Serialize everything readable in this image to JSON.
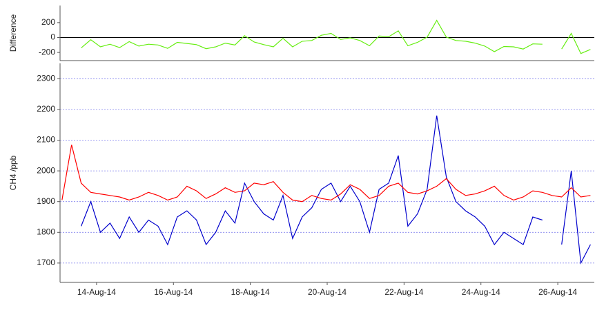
{
  "chart_data": [
    {
      "type": "line",
      "ylabel": "Difference",
      "x": [
        13.1,
        13.35,
        13.6,
        13.85,
        14.1,
        14.35,
        14.6,
        14.85,
        15.1,
        15.35,
        15.6,
        15.85,
        16.1,
        16.35,
        16.6,
        16.85,
        17.1,
        17.35,
        17.6,
        17.85,
        18.1,
        18.35,
        18.6,
        18.85,
        19.1,
        19.35,
        19.6,
        19.85,
        20.1,
        20.35,
        20.6,
        20.85,
        21.1,
        21.35,
        21.6,
        21.85,
        22.1,
        22.35,
        22.6,
        22.85,
        23.1,
        23.35,
        23.6,
        23.85,
        24.1,
        24.35,
        24.6,
        24.85,
        25.1,
        25.35,
        25.6,
        25.85,
        26.1,
        26.35,
        26.6,
        26.85
      ],
      "series": [
        {
          "color": "#66ee11",
          "values": [
            null,
            null,
            -140,
            -30,
            -125,
            -90,
            -135,
            -55,
            -115,
            -90,
            -100,
            -145,
            -65,
            -80,
            -95,
            -150,
            -125,
            -75,
            -100,
            25,
            -60,
            -95,
            -125,
            -10,
            -125,
            -50,
            -40,
            30,
            55,
            -25,
            -5,
            -40,
            -110,
            20,
            10,
            90,
            -110,
            -65,
            5,
            230,
            5,
            -40,
            -50,
            -75,
            -115,
            -190,
            -120,
            -125,
            -155,
            -85,
            -90,
            null,
            -155,
            55,
            -215,
            -160
          ]
        }
      ],
      "xlim": [
        13.05,
        26.95
      ],
      "ylim": [
        -310,
        430
      ],
      "yticks": [
        -200,
        0,
        200
      ],
      "zero_line": true,
      "grid": false
    },
    {
      "type": "line",
      "ylabel": "CH4 /ppb",
      "x": [
        13.1,
        13.35,
        13.6,
        13.85,
        14.1,
        14.35,
        14.6,
        14.85,
        15.1,
        15.35,
        15.6,
        15.85,
        16.1,
        16.35,
        16.6,
        16.85,
        17.1,
        17.35,
        17.6,
        17.85,
        18.1,
        18.35,
        18.6,
        18.85,
        19.1,
        19.35,
        19.6,
        19.85,
        20.1,
        20.35,
        20.6,
        20.85,
        21.1,
        21.35,
        21.6,
        21.85,
        22.1,
        22.35,
        22.6,
        22.85,
        23.1,
        23.35,
        23.6,
        23.85,
        24.1,
        24.35,
        24.6,
        24.85,
        25.1,
        25.35,
        25.6,
        25.85,
        26.1,
        26.35,
        26.6,
        26.85
      ],
      "series": [
        {
          "color": "#0000cc",
          "values": [
            null,
            null,
            1820,
            1900,
            1800,
            1830,
            1780,
            1850,
            1800,
            1840,
            1820,
            1760,
            1850,
            1870,
            1840,
            1760,
            1800,
            1870,
            1830,
            1960,
            1900,
            1860,
            1840,
            1920,
            1780,
            1850,
            1880,
            1940,
            1960,
            1900,
            1950,
            1900,
            1800,
            1940,
            1960,
            2050,
            1820,
            1860,
            1940,
            2180,
            1980,
            1900,
            1870,
            1850,
            1820,
            1760,
            1800,
            1780,
            1760,
            1850,
            1840,
            null,
            1760,
            2000,
            1700,
            1760
          ]
        },
        {
          "color": "#ff0000",
          "values": [
            1905,
            2085,
            1960,
            1930,
            1925,
            1920,
            1915,
            1905,
            1915,
            1930,
            1920,
            1905,
            1915,
            1950,
            1935,
            1910,
            1925,
            1945,
            1930,
            1935,
            1960,
            1955,
            1965,
            1930,
            1905,
            1900,
            1920,
            1910,
            1905,
            1925,
            1955,
            1940,
            1910,
            1920,
            1950,
            1960,
            1930,
            1925,
            1935,
            1950,
            1975,
            1940,
            1920,
            1925,
            1935,
            1950,
            1920,
            1905,
            1915,
            1935,
            1930,
            1920,
            1915,
            1945,
            1915,
            1920
          ]
        }
      ],
      "xlim": [
        13.05,
        26.95
      ],
      "ylim": [
        1637,
        2350
      ],
      "yticks": [
        1700,
        1800,
        1900,
        2000,
        2100,
        2200,
        2300
      ],
      "xticks": [
        {
          "value": 14,
          "label": "14-Aug-14"
        },
        {
          "value": 16,
          "label": "16-Aug-14"
        },
        {
          "value": 18,
          "label": "18-Aug-14"
        },
        {
          "value": 20,
          "label": "20-Aug-14"
        },
        {
          "value": 22,
          "label": "22-Aug-14"
        },
        {
          "value": 24,
          "label": "24-Aug-14"
        },
        {
          "value": 26,
          "label": "26-Aug-14"
        }
      ],
      "zero_line": false,
      "grid": true
    }
  ]
}
